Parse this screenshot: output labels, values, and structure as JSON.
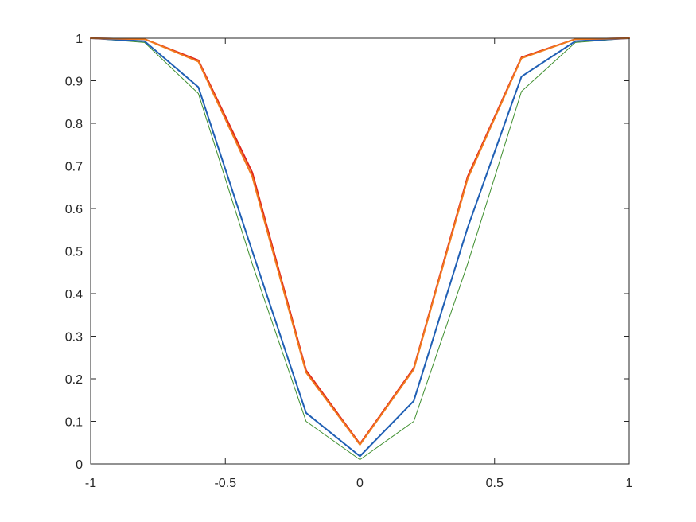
{
  "chart_data": {
    "type": "line",
    "title": "",
    "xlabel": "",
    "ylabel": "",
    "xlim": [
      -1,
      1
    ],
    "ylim": [
      0,
      1
    ],
    "grid": false,
    "box": true,
    "x": [
      -1,
      -0.8,
      -0.6,
      -0.4,
      -0.2,
      0,
      0.2,
      0.4,
      0.6,
      0.8,
      1
    ],
    "xticks": [
      "-1",
      "-0.5",
      "0",
      "0.5",
      "1"
    ],
    "xtick_values": [
      -1,
      -0.5,
      0,
      0.5,
      1
    ],
    "yticks": [
      "0",
      "0.1",
      "0.2",
      "0.3",
      "0.4",
      "0.5",
      "0.6",
      "0.7",
      "0.8",
      "0.9",
      "1"
    ],
    "ytick_values": [
      0,
      0.1,
      0.2,
      0.3,
      0.4,
      0.5,
      0.6,
      0.7,
      0.8,
      0.9,
      1
    ],
    "series": [
      {
        "color": "#3f8f2f",
        "width": 1,
        "values": [
          1.0,
          0.99,
          0.87,
          0.47,
          0.1,
          0.01,
          0.1,
          0.47,
          0.875,
          0.99,
          1.0
        ]
      },
      {
        "color": "#1f5fb4",
        "width": 2,
        "values": [
          1.0,
          0.993,
          0.885,
          0.5,
          0.12,
          0.018,
          0.148,
          0.555,
          0.91,
          0.993,
          1.0
        ]
      },
      {
        "color": "#e0261b",
        "width": 2,
        "values": [
          1.0,
          0.998,
          0.948,
          0.685,
          0.22,
          0.047,
          0.225,
          0.675,
          0.955,
          0.998,
          1.0
        ]
      },
      {
        "color": "#f07a1d",
        "width": 2,
        "values": [
          1.0,
          0.998,
          0.945,
          0.675,
          0.215,
          0.045,
          0.222,
          0.67,
          0.953,
          0.998,
          1.0
        ]
      }
    ]
  }
}
